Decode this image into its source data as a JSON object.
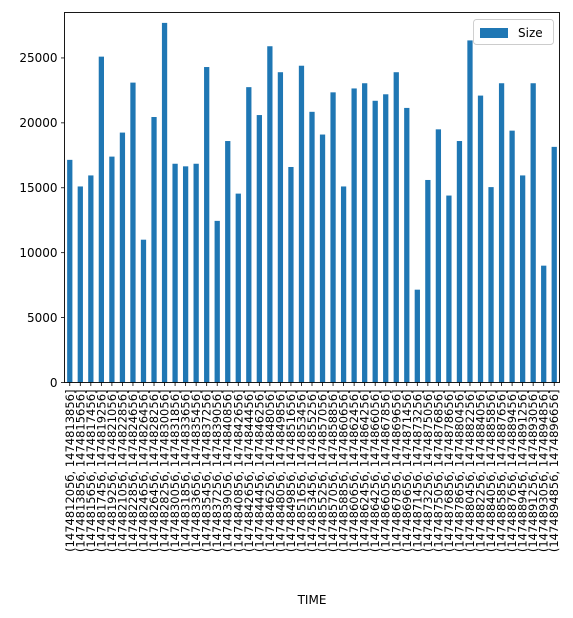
{
  "chart_data": {
    "type": "bar",
    "title": "",
    "xlabel": "TIME",
    "ylabel": "",
    "ylim": [
      0,
      28500
    ],
    "yticks": [
      0,
      5000,
      10000,
      15000,
      20000,
      25000
    ],
    "grid": false,
    "legend": {
      "placement": "top-right"
    },
    "categories": [
      "(147481205б, 1474813856]",
      "(1474813856, 1474815656]",
      "(1474815656, 1474817456]",
      "(1474817456, 1474819256]",
      "(1474819256, 1474821056]",
      "(1474821056, 1474822856]",
      "(1474822856, 1474824656]",
      "(1474824656, 1474826456]",
      "(1474826456, 1474828256]",
      "(1474828256, 1474830056]",
      "(1474830056, 1474831856]",
      "(1474831856, 1474833656]",
      "(1474833656, 1474835456]",
      "(1474835456, 1474837256]",
      "(1474837256, 1474839056]",
      "(1474839056, 1474840856]",
      "(1474840856, 1474842656]",
      "(1474842656, 1474844456]",
      "(1474844456, 1474846256]",
      "(1474846256, 1474848056]",
      "(1474848056, 1474849856]",
      "(1474849856, 1474851656]",
      "(1474851656, 1474853456]",
      "(1474853456, 1474855256]",
      "(1474855256, 1474857056]",
      "(1474857056, 1474858856]",
      "(1474858856, 1474860656]",
      "(1474860656, 1474862456]",
      "(1474862456, 1474864256]",
      "(1474864256, 1474866056]",
      "(1474866056, 1474867856]",
      "(1474867856, 1474869656]",
      "(1474869656, 1474871456]",
      "(1474871456, 1474873256]",
      "(1474873256, 1474875056]",
      "(1474875056, 1474876856]",
      "(1474876856, 1474878656]",
      "(1474878656, 1474880456]",
      "(1474880456, 1474882256]",
      "(1474882256, 1474884056]",
      "(1474884056, 1474885856]",
      "(1474885856, 1474887656]",
      "(1474887656, 1474889456]",
      "(1474889456, 1474891256]",
      "(1474891256, 1474893056]",
      "(1474893056, 1474894856]",
      "(1474894856, 1474896656]"
    ],
    "series": [
      {
        "name": "Size",
        "color": "#1f77b4",
        "values": [
          17150,
          15100,
          15950,
          25100,
          17400,
          19250,
          23100,
          11000,
          20450,
          27700,
          16850,
          16650,
          16850,
          24300,
          12450,
          18600,
          14550,
          22750,
          20600,
          25900,
          23900,
          16600,
          24400,
          20850,
          19100,
          22350,
          15100,
          22650,
          23050,
          21700,
          22200,
          23900,
          21150,
          7150,
          15600,
          19500,
          14400,
          18600,
          26350,
          22100,
          15050,
          23050,
          19400,
          15950,
          23050,
          9000,
          18150
        ]
      }
    ]
  }
}
